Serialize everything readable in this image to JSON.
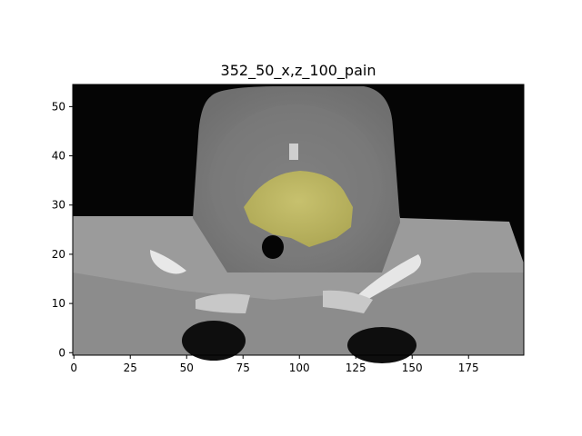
{
  "figure": {
    "title": "352_50_x,z_100_pain",
    "x_ticks": [
      0,
      25,
      50,
      75,
      100,
      125,
      150,
      175
    ],
    "y_ticks": [
      0,
      10,
      20,
      30,
      40,
      50
    ],
    "x_range": [
      -0.5,
      199.5
    ],
    "y_range": [
      -0.5,
      54.5
    ],
    "image": "CT axial slice (neck) grayscale",
    "overlay": "yellow segmentation mask",
    "overlay_color": "#d6d36a"
  }
}
